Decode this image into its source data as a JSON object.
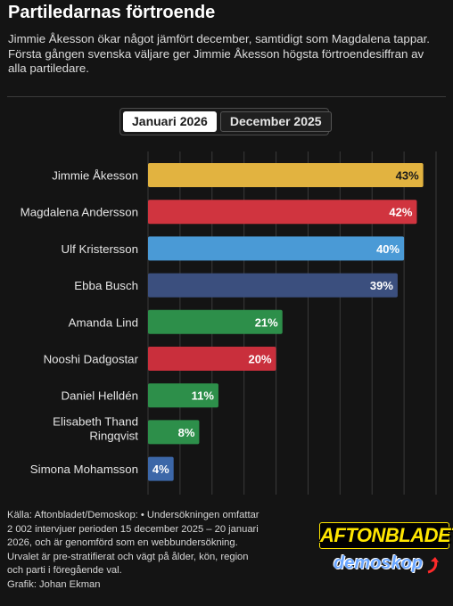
{
  "header": {
    "title": "Partiledarnas förtroende",
    "subtitle": "Jimmie Åkesson ökar något jämfört december, samtidigt som Magdalena tappar. Första gången svenska väljare ger Jimmie Åkesson högsta förtroendesiffran av alla partiledare."
  },
  "tabs": [
    {
      "label": "Januari 2026",
      "active": true
    },
    {
      "label": "December 2025",
      "active": false
    }
  ],
  "chart_data": {
    "type": "bar",
    "orientation": "horizontal",
    "categories": [
      "Jimmie Åkesson",
      "Magdalena Andersson",
      "Ulf Kristersson",
      "Ebba Busch",
      "Amanda Lind",
      "Nooshi Dadgostar",
      "Daniel Helldén",
      "Elisabeth Thand Ringqvist",
      "Simona Mohamsson"
    ],
    "values": [
      43,
      42,
      40,
      39,
      21,
      20,
      11,
      8,
      4
    ],
    "value_labels": [
      "43%",
      "42%",
      "40%",
      "39%",
      "21%",
      "20%",
      "11%",
      "8%",
      "4%"
    ],
    "colors": [
      "#e2b340",
      "#d0343f",
      "#4a9ad6",
      "#3b4f7e",
      "#2d8f4a",
      "#c92f3c",
      "#2d8f4a",
      "#2d8f4a",
      "#3c67a8"
    ],
    "label_colors": [
      "#1a1a1a",
      "#ffffff",
      "#ffffff",
      "#ffffff",
      "#ffffff",
      "#ffffff",
      "#ffffff",
      "#ffffff",
      "#ffffff"
    ],
    "xlim": [
      0,
      45
    ],
    "grid": true
  },
  "footer": {
    "source": "Källa: Aftonbladet/Demoskop: • Undersökningen omfattar 2 002 intervjuer perioden 15 december 2025 – 20 januari 2026, och är genomförd som en webbundersökning. Urvalet är pre-stratifierat och vägt på ålder, kön, region och parti i föregående val.",
    "credit": "Grafik: Johan Ekman"
  },
  "logo": {
    "main": "AFTONBLADET",
    "sub": "demoskop"
  }
}
